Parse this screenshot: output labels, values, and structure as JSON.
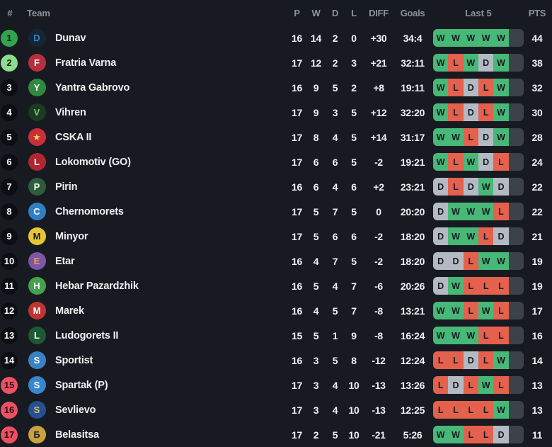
{
  "header": {
    "pos": "#",
    "team": "Team",
    "p": "P",
    "w": "W",
    "d": "D",
    "l": "L",
    "diff": "DIFF",
    "goals": "Goals",
    "last5": "Last 5",
    "pts": "PTS"
  },
  "colors": {
    "background": "#171b21",
    "header_text": "#8b929b",
    "row_text": "#f0f1f3",
    "badge_default": "#0b0e12",
    "badge_promotion": "#32a34f",
    "badge_promotion_playoff": "#8edd8e",
    "badge_relegation": "#eb5163",
    "form_win": "#47b877",
    "form_loss": "#e4614e",
    "form_draw": "#b4bac3",
    "form_empty": "#3c424a"
  },
  "rows": [
    {
      "pos": 1,
      "zone": "green",
      "team": "Dunav",
      "logo": {
        "bg": "#142534",
        "fg": "#3d85c0",
        "text": "D"
      },
      "p": 16,
      "w": 14,
      "d": 2,
      "l": 0,
      "diff": "+30",
      "goals": "34:4",
      "last5": [
        "W",
        "W",
        "W",
        "W",
        "W"
      ],
      "pts": 44
    },
    {
      "pos": 2,
      "zone": "light-green",
      "team": "Fratria Varna",
      "logo": {
        "bg": "#b5303c",
        "fg": "#ffffff",
        "text": "F"
      },
      "p": 17,
      "w": 12,
      "d": 2,
      "l": 3,
      "diff": "+21",
      "goals": "32:11",
      "last5": [
        "W",
        "L",
        "W",
        "D",
        "W"
      ],
      "pts": 38
    },
    {
      "pos": 3,
      "zone": "none",
      "team": "Yantra Gabrovo",
      "logo": {
        "bg": "#2f8a3f",
        "fg": "#ffffff",
        "text": "Y"
      },
      "p": 16,
      "w": 9,
      "d": 5,
      "l": 2,
      "diff": "+8",
      "goals": "19:11",
      "last5": [
        "W",
        "L",
        "D",
        "L",
        "W"
      ],
      "pts": 32
    },
    {
      "pos": 4,
      "zone": "none",
      "team": "Vihren",
      "logo": {
        "bg": "#1a3a22",
        "fg": "#7ec77c",
        "text": "V"
      },
      "p": 17,
      "w": 9,
      "d": 3,
      "l": 5,
      "diff": "+12",
      "goals": "32:20",
      "last5": [
        "W",
        "L",
        "D",
        "L",
        "W"
      ],
      "pts": 30
    },
    {
      "pos": 5,
      "zone": "none",
      "team": "CSKA II",
      "logo": {
        "bg": "#c8313a",
        "fg": "#f5d34e",
        "text": "★"
      },
      "p": 17,
      "w": 8,
      "d": 4,
      "l": 5,
      "diff": "+14",
      "goals": "31:17",
      "last5": [
        "W",
        "W",
        "L",
        "D",
        "W"
      ],
      "pts": 28
    },
    {
      "pos": 6,
      "zone": "none",
      "team": "Lokomotiv (GO)",
      "logo": {
        "bg": "#b02730",
        "fg": "#ffffff",
        "text": "L"
      },
      "p": 17,
      "w": 6,
      "d": 6,
      "l": 5,
      "diff": "-2",
      "goals": "19:21",
      "last5": [
        "W",
        "L",
        "W",
        "D",
        "L"
      ],
      "pts": 24
    },
    {
      "pos": 7,
      "zone": "none",
      "team": "Pirin",
      "logo": {
        "bg": "#2c5e3c",
        "fg": "#ffffff",
        "text": "P"
      },
      "p": 16,
      "w": 6,
      "d": 4,
      "l": 6,
      "diff": "+2",
      "goals": "23:21",
      "last5": [
        "D",
        "L",
        "D",
        "W",
        "D"
      ],
      "pts": 22
    },
    {
      "pos": 8,
      "zone": "none",
      "team": "Chernomorets",
      "logo": {
        "bg": "#2f7fc4",
        "fg": "#ffffff",
        "text": "C"
      },
      "p": 17,
      "w": 5,
      "d": 7,
      "l": 5,
      "diff": "0",
      "goals": "20:20",
      "last5": [
        "D",
        "W",
        "W",
        "W",
        "L"
      ],
      "pts": 22
    },
    {
      "pos": 9,
      "zone": "none",
      "team": "Minyor",
      "logo": {
        "bg": "#e5c636",
        "fg": "#1b1b1b",
        "text": "M"
      },
      "p": 17,
      "w": 5,
      "d": 6,
      "l": 6,
      "diff": "-2",
      "goals": "18:20",
      "last5": [
        "D",
        "W",
        "W",
        "L",
        "D"
      ],
      "pts": 21
    },
    {
      "pos": 10,
      "zone": "none",
      "team": "Etar",
      "logo": {
        "bg": "#7c57a8",
        "fg": "#f0a03c",
        "text": "E"
      },
      "p": 16,
      "w": 4,
      "d": 7,
      "l": 5,
      "diff": "-2",
      "goals": "18:20",
      "last5": [
        "D",
        "D",
        "L",
        "W",
        "W"
      ],
      "pts": 19
    },
    {
      "pos": 11,
      "zone": "none",
      "team": "Hebar Pazardzhik",
      "logo": {
        "bg": "#46a14f",
        "fg": "#ffffff",
        "text": "H"
      },
      "p": 16,
      "w": 5,
      "d": 4,
      "l": 7,
      "diff": "-6",
      "goals": "20:26",
      "last5": [
        "D",
        "W",
        "L",
        "L",
        "L"
      ],
      "pts": 19
    },
    {
      "pos": 12,
      "zone": "none",
      "team": "Marek",
      "logo": {
        "bg": "#c03430",
        "fg": "#ffffff",
        "text": "M"
      },
      "p": 16,
      "w": 4,
      "d": 5,
      "l": 7,
      "diff": "-8",
      "goals": "13:21",
      "last5": [
        "W",
        "W",
        "L",
        "W",
        "L"
      ],
      "pts": 17
    },
    {
      "pos": 13,
      "zone": "none",
      "team": "Ludogorets II",
      "logo": {
        "bg": "#1c5a31",
        "fg": "#ffffff",
        "text": "L"
      },
      "p": 15,
      "w": 5,
      "d": 1,
      "l": 9,
      "diff": "-8",
      "goals": "16:24",
      "last5": [
        "W",
        "W",
        "W",
        "L",
        "L"
      ],
      "pts": 16
    },
    {
      "pos": 14,
      "zone": "none",
      "team": "Sportist",
      "logo": {
        "bg": "#3b82c4",
        "fg": "#ffffff",
        "text": "S"
      },
      "p": 16,
      "w": 3,
      "d": 5,
      "l": 8,
      "diff": "-12",
      "goals": "12:24",
      "last5": [
        "L",
        "L",
        "D",
        "L",
        "W"
      ],
      "pts": 14
    },
    {
      "pos": 15,
      "zone": "red",
      "team": "Spartak (P)",
      "logo": {
        "bg": "#3a86cc",
        "fg": "#ffffff",
        "text": "S"
      },
      "p": 17,
      "w": 3,
      "d": 4,
      "l": 10,
      "diff": "-13",
      "goals": "13:26",
      "last5": [
        "L",
        "D",
        "L",
        "W",
        "L"
      ],
      "pts": 13
    },
    {
      "pos": 16,
      "zone": "red",
      "team": "Sevlievo",
      "logo": {
        "bg": "#274f93",
        "fg": "#d8c36a",
        "text": "S"
      },
      "p": 17,
      "w": 3,
      "d": 4,
      "l": 10,
      "diff": "-13",
      "goals": "12:25",
      "last5": [
        "L",
        "L",
        "L",
        "L",
        "W"
      ],
      "pts": 13
    },
    {
      "pos": 17,
      "zone": "red",
      "team": "Belasitsa",
      "logo": {
        "bg": "#c9a23f",
        "fg": "#17202a",
        "text": "Б"
      },
      "p": 17,
      "w": 2,
      "d": 5,
      "l": 10,
      "diff": "-21",
      "goals": "5:26",
      "last5": [
        "W",
        "W",
        "L",
        "L",
        "D"
      ],
      "pts": 11
    }
  ]
}
